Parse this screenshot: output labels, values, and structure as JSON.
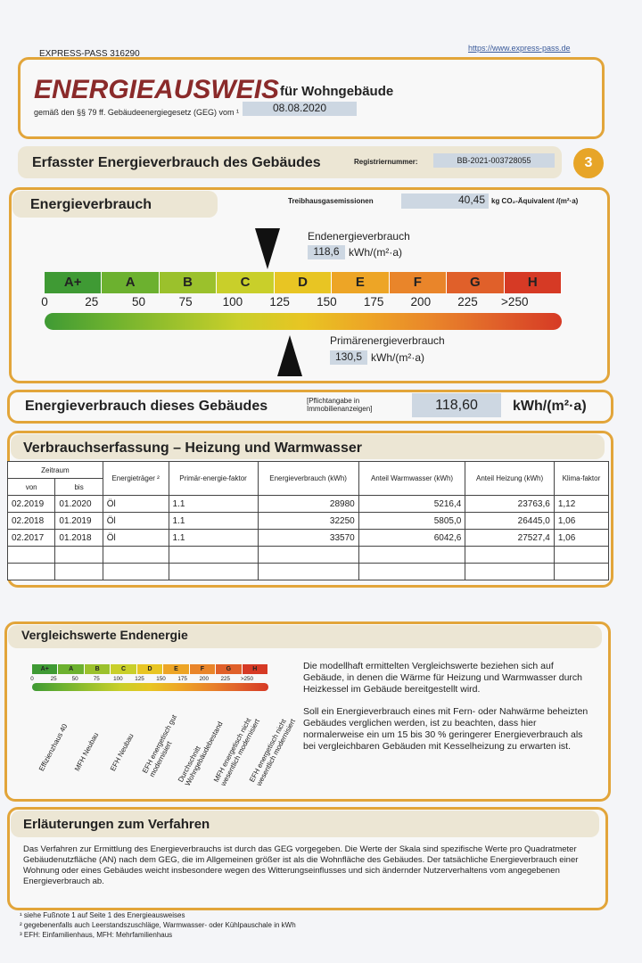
{
  "header": {
    "pass_id": "EXPRESS-PASS 316290",
    "url": "https://www.express-pass.de"
  },
  "title": {
    "main": "ENERGIEAUSWEIS",
    "sub": "für Wohngebäude",
    "legal": "gemäß den §§ 79 ff. Gebäudeenergiegesetz (GEG) vom ¹",
    "date": "08.08.2020"
  },
  "section": {
    "title": "Erfasster Energieverbrauch des Gebäudes",
    "reg_label": "Registriernummer:",
    "reg_number": "BB-2021-003728055",
    "page": "3"
  },
  "energy": {
    "title": "Energieverbrauch",
    "ghg_label": "Treibhausgasemissionen",
    "ghg_value": "40,45",
    "ghg_unit": "kg CO₂-Äquivalent /(m²·a)",
    "final_label": "Endenergieverbrauch",
    "final_value": "118,6",
    "final_unit": "kWh/(m²·a)",
    "classes": [
      "A+",
      "A",
      "B",
      "C",
      "D",
      "E",
      "F",
      "G",
      "H"
    ],
    "scale": [
      0,
      25,
      50,
      75,
      100,
      125,
      150,
      175,
      200,
      225,
      ">250"
    ],
    "primary_label": "Primärenergieverbrauch",
    "primary_value": "130,5",
    "primary_unit": "kWh/(m²·a)"
  },
  "building": {
    "label": "Energieverbrauch dieses Gebäudes",
    "note": "[Pflichtangabe in Immobilienanzeigen]",
    "value": "118,60",
    "unit": "kWh/(m²·a)"
  },
  "table": {
    "title": "Verbrauchserfassung – Heizung und Warmwasser",
    "period": "Zeitraum",
    "headers": [
      "von",
      "bis",
      "Energieträger ²",
      "Primär-energie-faktor",
      "Energieverbrauch (kWh)",
      "Anteil Warmwasser (kWh)",
      "Anteil Heizung (kWh)",
      "Klima-faktor"
    ],
    "rows": [
      [
        "02.2019",
        "01.2020",
        "Öl",
        "1.1",
        "28980",
        "5216,4",
        "23763,6",
        "1,12"
      ],
      [
        "02.2018",
        "01.2019",
        "Öl",
        "1.1",
        "32250",
        "5805,0",
        "26445,0",
        "1,06"
      ],
      [
        "02.2017",
        "01.2018",
        "Öl",
        "1.1",
        "33570",
        "6042,6",
        "27527,4",
        "1,06"
      ]
    ]
  },
  "comparison": {
    "title": "Vergleichswerte Endenergie",
    "labels": [
      "Effizienzhaus 40",
      "MFH Neubau",
      "EFH Neubau",
      "EFH energetisch gut modernisiert",
      "Durchschnitt Wohngebäudebestand",
      "MFH energetisch nicht wesentlich modernisiert",
      "EFH energetisch nicht wesentlich modernisiert"
    ],
    "paragraphs": [
      "Die modellhaft ermittelten Vergleichswerte beziehen sich auf Gebäude, in denen die Wärme für Heizung und Warmwasser durch Heizkessel im Gebäude bereitgestellt wird.",
      "Soll ein Energieverbrauch eines mit Fern- oder Nahwärme beheizten Gebäudes verglichen werden, ist zu beachten, dass hier normalerweise ein um 15 bis 30 % geringerer Energieverbrauch als bei vergleichbaren Gebäuden mit Kesselheizung zu erwarten ist."
    ]
  },
  "explanation": {
    "title": "Erläuterungen zum Verfahren",
    "text": "Das Verfahren zur Ermittlung des Energieverbrauchs ist durch das GEG vorgegeben. Die Werte der Skala sind spezifische Werte pro Quadratmeter Gebäudenutzfläche (AN) nach dem GEG, die im Allgemeinen größer ist als die Wohnfläche des Gebäudes. Der tatsächliche Energieverbrauch einer Wohnung oder eines Gebäudes weicht insbesondere wegen des Witterungseinflusses und sich ändernder Nutzerverhaltens vom angegebenen Energieverbrauch ab."
  },
  "footnotes": [
    "¹ siehe Fußnote 1 auf Seite 1 des Energieausweises",
    "² gegebenenfalls auch Leerstandszuschläge, Warmwasser- oder Kühlpauschale in kWh",
    "³ EFH: Einfamilienhaus, MFH: Mehrfamilienhaus"
  ]
}
